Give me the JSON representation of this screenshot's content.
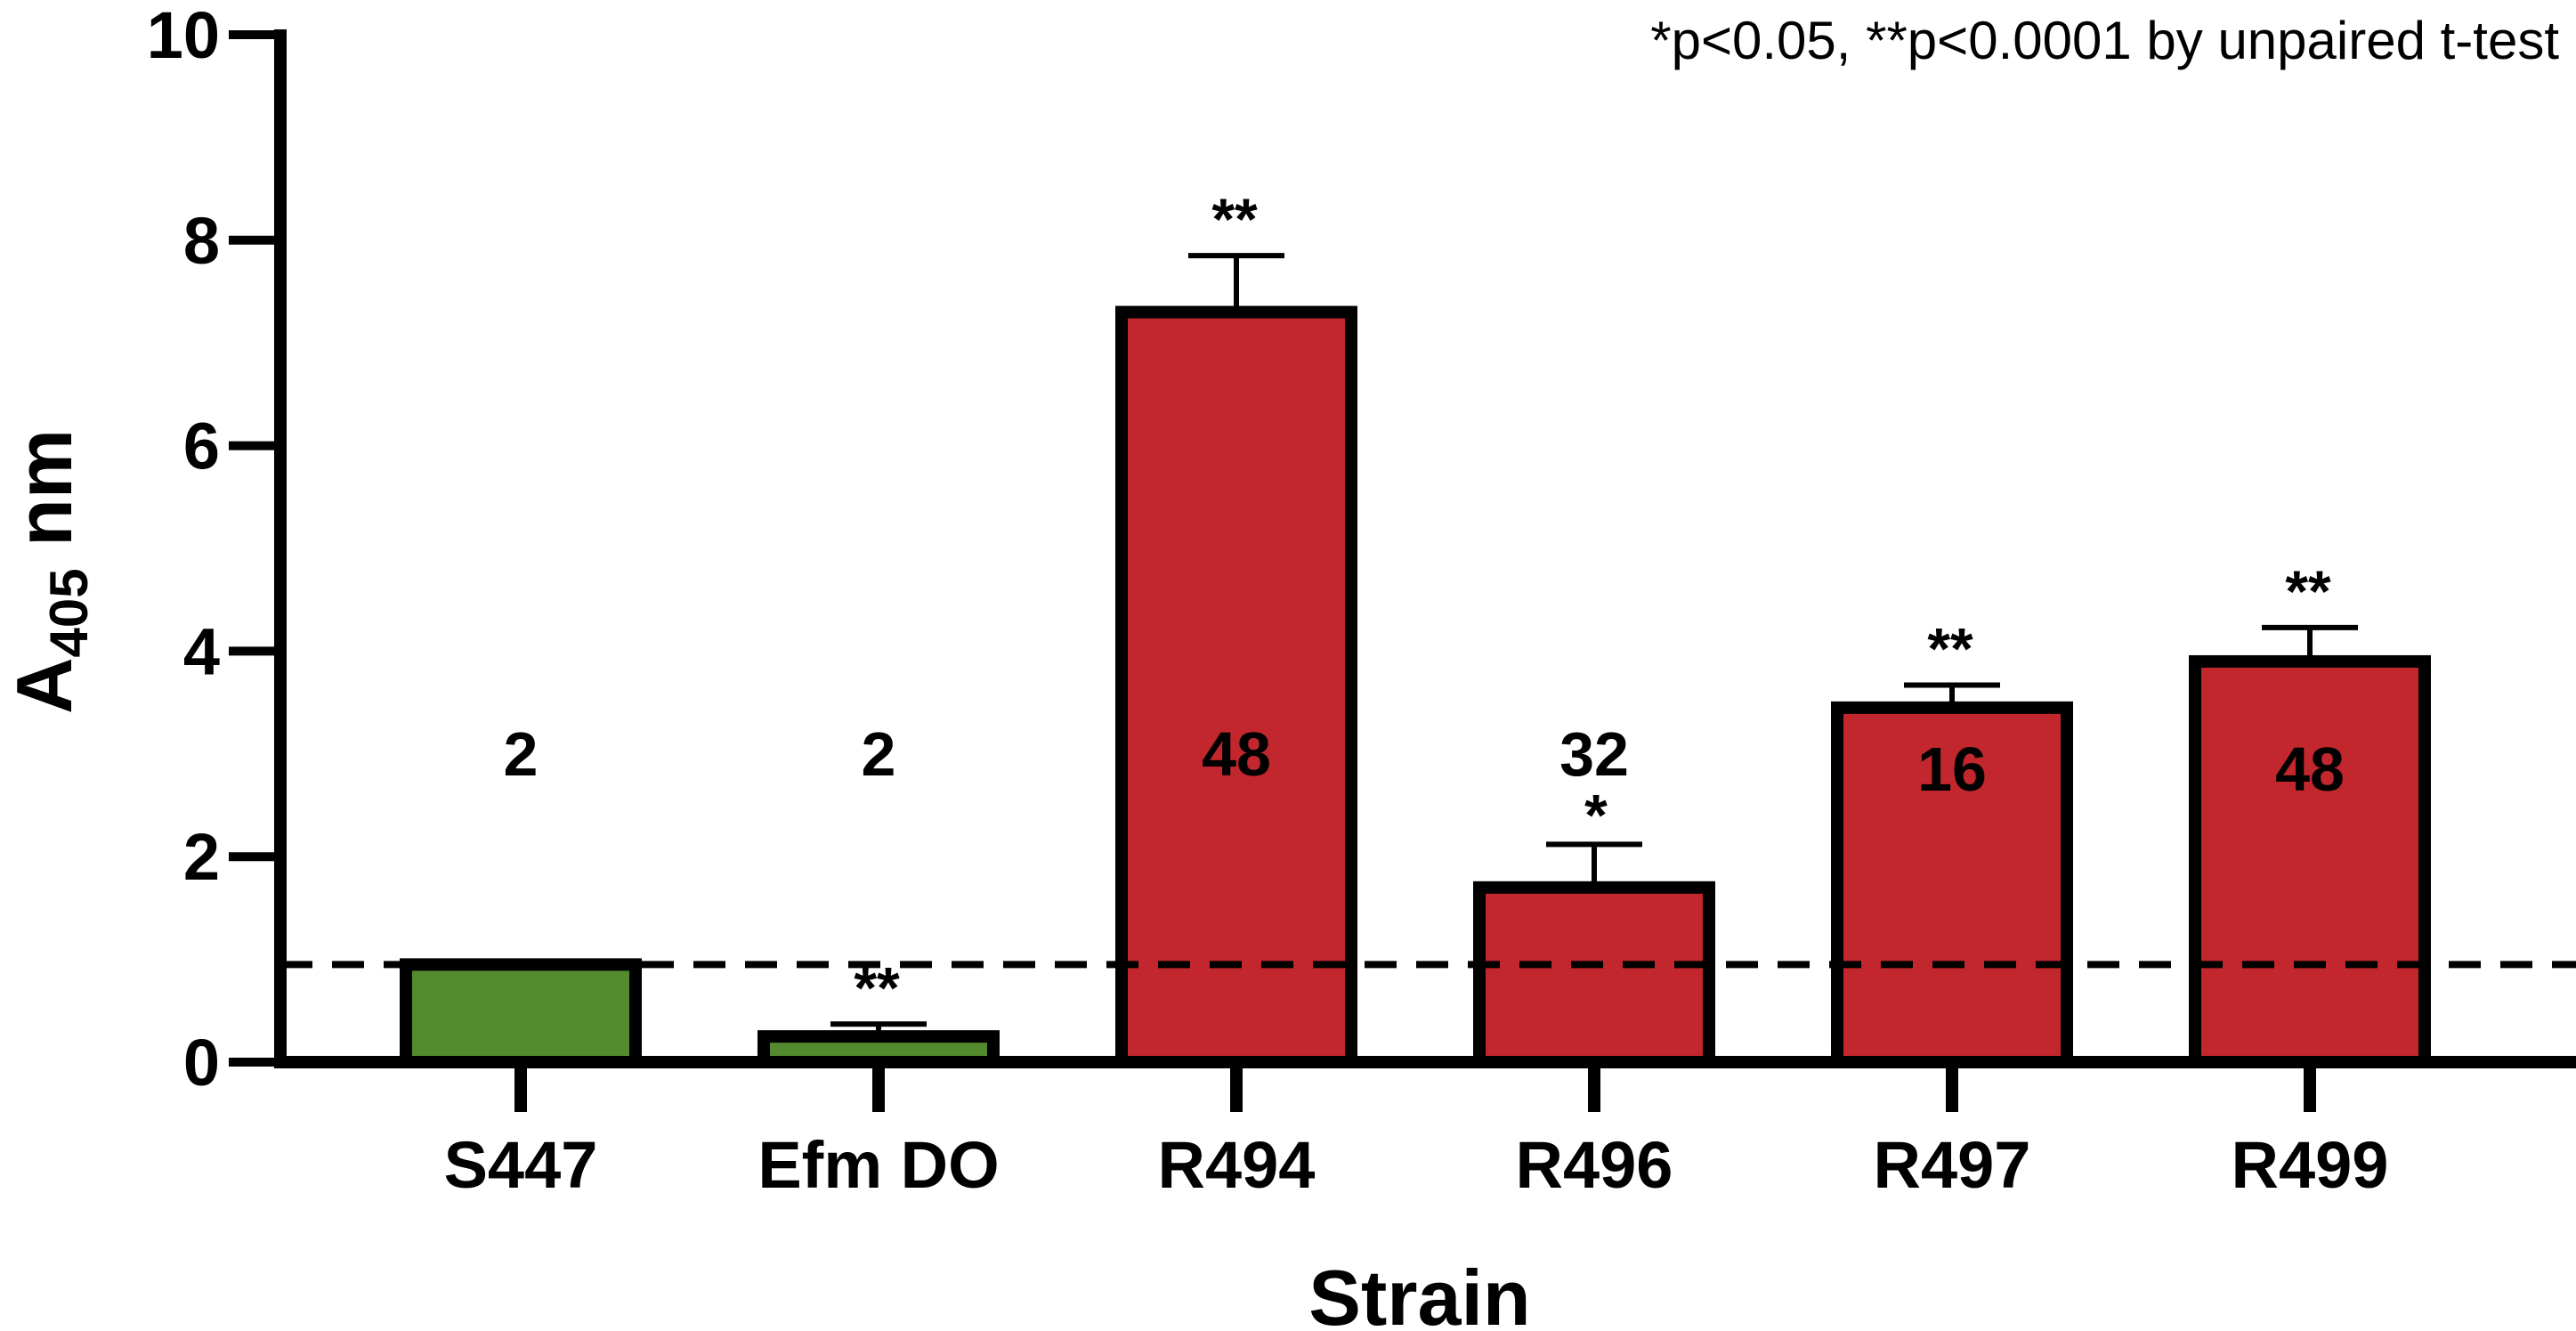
{
  "chart_data": {
    "type": "bar",
    "title": "",
    "xlabel": "Strain",
    "ylabel": {
      "main": "A",
      "subscript": "405",
      "unit": " nm"
    },
    "ylim": [
      0,
      10
    ],
    "yticks": [
      "0",
      "2",
      "4",
      "6",
      "8",
      "10"
    ],
    "annotation": "*p<0.05, **p<0.0001 by unpaired t-test",
    "reference_line": {
      "y": 0.95,
      "style": "dashed"
    },
    "categories": [
      "S447",
      "Efm DO",
      "R494",
      "R496",
      "R497",
      "R499"
    ],
    "values": [
      0.95,
      0.25,
      7.3,
      1.7,
      3.45,
      3.9
    ],
    "errors": [
      0.0,
      0.12,
      0.55,
      0.42,
      0.22,
      0.33
    ],
    "significance": [
      "",
      "**",
      "**",
      "*",
      "**",
      "**"
    ],
    "bar_labels": [
      "2",
      "2",
      "48",
      "32",
      "16",
      "48"
    ],
    "bar_label_y": [
      3.0,
      3.0,
      3.0,
      3.0,
      2.85,
      2.85
    ],
    "colors": [
      "#548B2E",
      "#548B2E",
      "#C1272D",
      "#C1272D",
      "#C1272D",
      "#C1272D"
    ]
  }
}
